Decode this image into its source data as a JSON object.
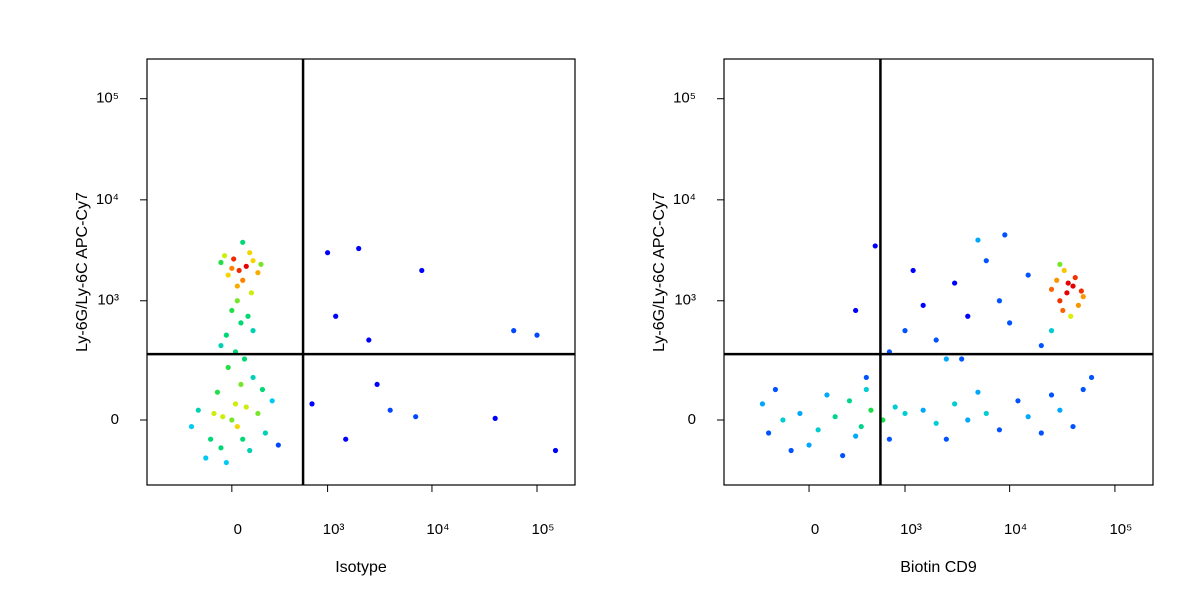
{
  "chart_data": [
    {
      "type": "scatter",
      "scale": "biexponential",
      "xlabel": "Isotype",
      "ylabel": "Ly-6G/Ly-6C APC-Cy7",
      "xlim": [
        -780,
        230000
      ],
      "ylim": [
        -277,
        247000
      ],
      "xticks": [
        0,
        {
          "value": 1000,
          "label": "10³"
        },
        {
          "value": 10000,
          "label": "10⁴"
        },
        {
          "value": 100000,
          "label": "10⁵"
        }
      ],
      "yticks": [
        0,
        {
          "value": 1000,
          "label": "10³"
        },
        {
          "value": 10000,
          "label": "10⁴"
        },
        {
          "value": 100000,
          "label": "10⁵"
        }
      ],
      "gate": {
        "x": 567,
        "y": 283
      },
      "series": [
        {
          "x": [
            -50,
            30,
            80,
            -120,
            150,
            0,
            -200,
            100,
            -80,
            200,
            50,
            -150,
            250,
            -30,
            120,
            -250,
            300,
            20,
            -100,
            60,
            180,
            -60,
            20,
            -30,
            50,
            0,
            90,
            -60,
            120,
            30,
            -20,
            70,
            40,
            80,
            -20,
            120,
            0,
            60,
            150,
            -60,
            100,
            30,
            170,
            -40,
            60,
            110,
            10,
            1000,
            2000,
            8000,
            1200,
            3000,
            4000,
            60000,
            100000,
            150000,
            7000,
            40000,
            1500,
            2500,
            700
          ],
          "y": [
            10,
            -20,
            40,
            -60,
            20,
            0,
            30,
            -100,
            90,
            -40,
            120,
            -130,
            60,
            -150,
            150,
            -20,
            -80,
            50,
            20,
            -60,
            100,
            -90,
            300,
            450,
            600,
            800,
            700,
            350,
            500,
            1000,
            200,
            250,
            2000,
            2200,
            1800,
            2500,
            2100,
            1600,
            1900,
            2400,
            3000,
            1400,
            2300,
            2800,
            3800,
            1200,
            2600,
            3000,
            3300,
            2000,
            700,
            120,
            30,
            500,
            450,
            -100,
            10,
            5,
            -60,
            400,
            50
          ]
        }
      ]
    },
    {
      "type": "scatter",
      "scale": "biexponential",
      "xlabel": "Biotin CD9",
      "ylabel": "Ly-6G/Ly-6C APC-Cy7",
      "xlim": [
        -780,
        230000
      ],
      "ylim": [
        -277,
        247000
      ],
      "xticks": [
        0,
        {
          "value": 1000,
          "label": "10³"
        },
        {
          "value": 10000,
          "label": "10⁴"
        },
        {
          "value": 100000,
          "label": "10⁵"
        }
      ],
      "yticks": [
        0,
        {
          "value": 1000,
          "label": "10³"
        },
        {
          "value": 10000,
          "label": "10⁴"
        },
        {
          "value": 100000,
          "label": "10⁵"
        }
      ],
      "gate": {
        "x": 567,
        "y": 283
      },
      "series": [
        {
          "x": [
            -150,
            -50,
            50,
            150,
            -250,
            250,
            0,
            100,
            -100,
            350,
            450,
            600,
            800,
            -300,
            200,
            400,
            700,
            1000,
            -200,
            300,
            1500,
            2000,
            3000,
            4000,
            6000,
            8000,
            12000,
            15000,
            20000,
            25000,
            30000,
            40000,
            50000,
            60000,
            2500,
            5000,
            700,
            1000,
            1500,
            2000,
            3000,
            4000,
            6000,
            8000,
            1200,
            2500,
            10000,
            20000,
            300,
            500,
            15000,
            5000,
            9000,
            400,
            3500,
            25000,
            35000,
            30000,
            40000,
            28000,
            45000,
            33000,
            38000,
            25000,
            50000,
            32000,
            42000,
            36000,
            30000,
            48000
          ],
          "y": [
            0,
            20,
            -30,
            10,
            -40,
            60,
            -80,
            80,
            -100,
            -20,
            30,
            0,
            40,
            50,
            -120,
            100,
            -60,
            20,
            100,
            -50,
            30,
            -10,
            50,
            0,
            20,
            -30,
            60,
            10,
            -40,
            80,
            30,
            -20,
            100,
            150,
            -60,
            90,
            300,
            500,
            900,
            400,
            1500,
            700,
            2500,
            1000,
            2000,
            250,
            600,
            350,
            800,
            3500,
            1800,
            4000,
            4500,
            150,
            250,
            500,
            1200,
            1000,
            1400,
            1600,
            900,
            2000,
            700,
            1300,
            1100,
            800,
            1700,
            1500,
            2300,
            1250
          ]
        }
      ]
    }
  ]
}
